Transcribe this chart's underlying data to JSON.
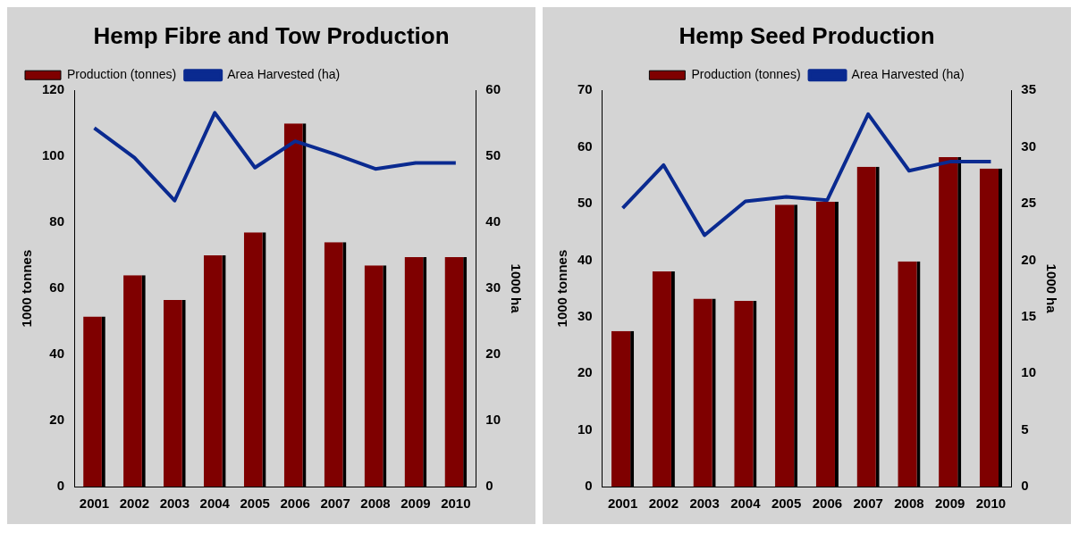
{
  "chart_data": [
    {
      "type": "bar",
      "title": "Hemp Fibre and Tow Production",
      "categories": [
        "2001",
        "2002",
        "2003",
        "2004",
        "2005",
        "2006",
        "2007",
        "2008",
        "2009",
        "2010"
      ],
      "ylabel": "1000 tonnes",
      "y2label": "1000 ha",
      "ylim": [
        0,
        120
      ],
      "yticks": [
        0,
        20,
        40,
        60,
        80,
        100,
        120
      ],
      "y2lim": [
        0,
        60
      ],
      "y2ticks": [
        0,
        10,
        20,
        30,
        40,
        50,
        60
      ],
      "legend": "top left",
      "grid": false,
      "marker": "none",
      "series": [
        {
          "name": "Production (tonnes)",
          "color": "#7f0000",
          "values": [
            51.5,
            64,
            56.5,
            70,
            77,
            110,
            74,
            67,
            69.5,
            69.5
          ]
        },
        {
          "name": "Area Harvested (ha)",
          "type": "line",
          "axis": "y2",
          "color": "#0a2a90",
          "values": [
            54.3,
            49.8,
            43.3,
            56.6,
            48.3,
            52.3,
            50.3,
            48.1,
            49,
            49
          ]
        }
      ]
    },
    {
      "type": "bar",
      "title": "Hemp Seed Production",
      "categories": [
        "2001",
        "2002",
        "2003",
        "2004",
        "2005",
        "2006",
        "2007",
        "2008",
        "2009",
        "2010"
      ],
      "ylabel": "1000 tonnes",
      "y2label": "1000 ha",
      "ylim": [
        0,
        70
      ],
      "yticks": [
        0,
        10,
        20,
        30,
        40,
        50,
        60,
        70
      ],
      "y2lim": [
        0,
        35
      ],
      "y2ticks": [
        0,
        5,
        10,
        15,
        20,
        25,
        30,
        35
      ],
      "legend": "top",
      "grid": false,
      "marker": "none",
      "series": [
        {
          "name": "Production (tonnes)",
          "color": "#7f0000",
          "values": [
            27.5,
            38,
            33.2,
            32.8,
            49.8,
            50.3,
            56.5,
            39.8,
            58.2,
            56.2
          ]
        },
        {
          "name": "Area Harvested (ha)",
          "type": "line",
          "axis": "y2",
          "color": "#0a2a90",
          "values": [
            24.6,
            28.4,
            22.2,
            25.2,
            25.6,
            25.3,
            32.9,
            27.9,
            28.7,
            28.7
          ]
        }
      ]
    }
  ]
}
